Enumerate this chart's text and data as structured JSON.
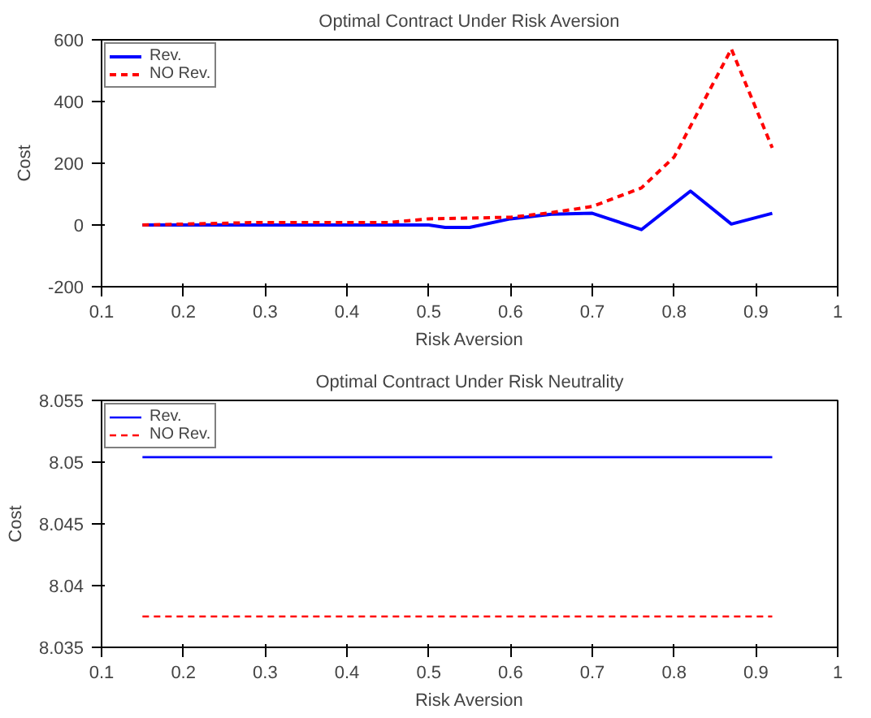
{
  "chart_data": [
    {
      "type": "line",
      "title": "Optimal Contract Under Risk Aversion",
      "xlabel": "Risk Aversion",
      "ylabel": "Cost",
      "xlim": [
        0.1,
        1
      ],
      "xticks": [
        0.1,
        0.2,
        0.3,
        0.4,
        0.5,
        0.6,
        0.7,
        0.8,
        0.9,
        1
      ],
      "ylim": [
        -200,
        600
      ],
      "yticks": [
        -200,
        0,
        200,
        400,
        600
      ],
      "grid": false,
      "legend": "top left",
      "series": [
        {
          "name": "Rev.",
          "color": "#0000ff",
          "line_style": "solid",
          "x": [
            0.15,
            0.3,
            0.5,
            0.52,
            0.55,
            0.6,
            0.65,
            0.7,
            0.76,
            0.82,
            0.87,
            0.92
          ],
          "values": [
            0,
            0,
            0,
            -8,
            -8,
            20,
            35,
            38,
            -15,
            110,
            3,
            38
          ]
        },
        {
          "name": "NO Rev.",
          "color": "#ff0000",
          "line_style": "dashed",
          "x": [
            0.15,
            0.29,
            0.45,
            0.5,
            0.6,
            0.65,
            0.7,
            0.76,
            0.8,
            0.87,
            0.92
          ],
          "values": [
            0,
            8,
            8,
            20,
            25,
            40,
            60,
            120,
            220,
            570,
            250
          ]
        }
      ]
    },
    {
      "type": "line",
      "title": "Optimal Contract Under Risk Neutrality",
      "xlabel": "Risk Aversion",
      "ylabel": "Cost",
      "xlim": [
        0.1,
        1
      ],
      "xticks": [
        0.1,
        0.2,
        0.3,
        0.4,
        0.5,
        0.6,
        0.7,
        0.8,
        0.9,
        1
      ],
      "ylim": [
        8.035,
        8.055
      ],
      "yticks": [
        8.035,
        8.04,
        8.045,
        8.05,
        8.055
      ],
      "grid": false,
      "legend": "top left",
      "series": [
        {
          "name": "Rev.",
          "color": "#0000ff",
          "line_style": "solid",
          "x": [
            0.15,
            0.92
          ],
          "values": [
            8.0504,
            8.0504
          ]
        },
        {
          "name": "NO Rev.",
          "color": "#ff0000",
          "line_style": "dashed",
          "x": [
            0.15,
            0.92
          ],
          "values": [
            8.0375,
            8.0375
          ]
        }
      ]
    }
  ]
}
